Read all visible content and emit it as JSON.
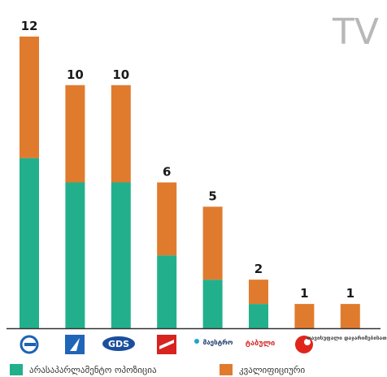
{
  "chart_data": {
    "type": "bar",
    "stacked": true,
    "title": "TV",
    "categories": [
      "",
      "",
      "GDS",
      "",
      "მაესტრო",
      "ტაბული",
      "",
      "თავისუფალი დაჯარიმებისათვის"
    ],
    "series": [
      {
        "name": "არასაპარლამენტო ოპოზიცია",
        "values": [
          7,
          6,
          6,
          3,
          2,
          1,
          0,
          0
        ]
      },
      {
        "name": "კვალიფიციური",
        "values": [
          5,
          4,
          4,
          3,
          3,
          1,
          1,
          1
        ]
      }
    ],
    "totals": [
      "12",
      "10",
      "10",
      "6",
      "5",
      "2",
      "1",
      "1"
    ],
    "ylim": [
      0,
      12.5
    ],
    "grid": false,
    "legend": "bottom",
    "colors": {
      "series1": "#22b08c",
      "series2": "#e07b2e",
      "axis": "#333333"
    }
  }
}
